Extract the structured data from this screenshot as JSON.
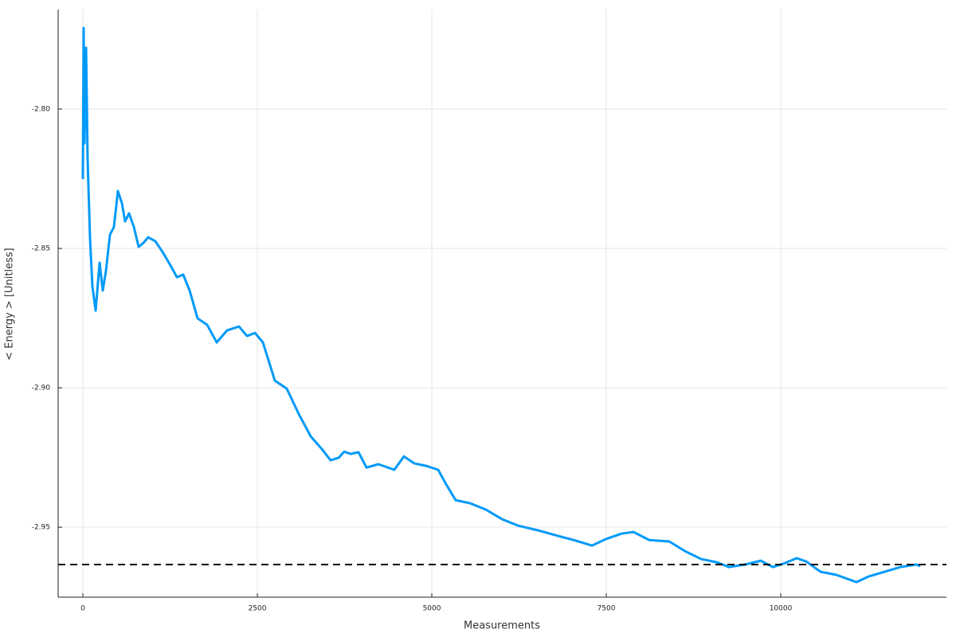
{
  "chart_data": {
    "type": "line",
    "xlabel": "Measurements",
    "ylabel": "< Energy > [Unitless]",
    "x": [
      0,
      11,
      23,
      46,
      68,
      103,
      137,
      183,
      240,
      285,
      331,
      388,
      445,
      502,
      559,
      605,
      662,
      731,
      799,
      868,
      936,
      1039,
      1153,
      1267,
      1347,
      1438,
      1530,
      1644,
      1781,
      1918,
      2066,
      2237,
      2352,
      2466,
      2580,
      2751,
      2922,
      3094,
      3265,
      3436,
      3550,
      3664,
      3744,
      3836,
      3950,
      4064,
      4235,
      4463,
      4600,
      4749,
      4920,
      5091,
      5205,
      5342,
      5548,
      5776,
      6005,
      6233,
      6518,
      6804,
      7032,
      7295,
      7489,
      7717,
      7888,
      8116,
      8402,
      8630,
      8858,
      9087,
      9258,
      9486,
      9715,
      9886,
      10057,
      10228,
      10365,
      10571,
      10799,
      11084,
      11256,
      11484,
      11712,
      11941,
      11998
    ],
    "series": [
      {
        "color": "#009af9",
        "values": [
          -2.8251,
          -2.7709,
          -2.8123,
          -2.778,
          -2.818,
          -2.8466,
          -2.8637,
          -2.8723,
          -2.8551,
          -2.8651,
          -2.858,
          -2.8451,
          -2.8423,
          -2.8294,
          -2.8337,
          -2.8403,
          -2.8374,
          -2.8423,
          -2.8494,
          -2.848,
          -2.846,
          -2.8474,
          -2.8517,
          -2.8566,
          -2.8603,
          -2.8594,
          -2.8651,
          -2.8751,
          -2.8774,
          -2.8837,
          -2.8794,
          -2.878,
          -2.8814,
          -2.8803,
          -2.8837,
          -2.8974,
          -2.9003,
          -2.9094,
          -2.9174,
          -2.9223,
          -2.926,
          -2.9251,
          -2.9229,
          -2.9237,
          -2.9231,
          -2.9286,
          -2.9274,
          -2.9294,
          -2.9246,
          -2.9271,
          -2.928,
          -2.9294,
          -2.9346,
          -2.9403,
          -2.9414,
          -2.9437,
          -2.9471,
          -2.9494,
          -2.9511,
          -2.9531,
          -2.9546,
          -2.9566,
          -2.9543,
          -2.9523,
          -2.9517,
          -2.9546,
          -2.9551,
          -2.9586,
          -2.9614,
          -2.9626,
          -2.9643,
          -2.9634,
          -2.962,
          -2.9643,
          -2.9629,
          -2.9611,
          -2.9623,
          -2.966,
          -2.9671,
          -2.9697,
          -2.9677,
          -2.966,
          -2.9643,
          -2.9634,
          -2.964
        ]
      }
    ],
    "hline": {
      "value": -2.9634,
      "color": "#000000"
    },
    "xlim": [
      -354,
      12374
    ],
    "ylim": [
      -2.9751,
      -2.7643
    ],
    "xticks": [
      0,
      2500,
      5000,
      7500,
      10000
    ],
    "yticks": [
      -2.95,
      {
        "value": -2.9,
        "label": "-2.90"
      },
      -2.85,
      {
        "value": -2.8,
        "label": "-2.80"
      }
    ],
    "grid": true
  }
}
